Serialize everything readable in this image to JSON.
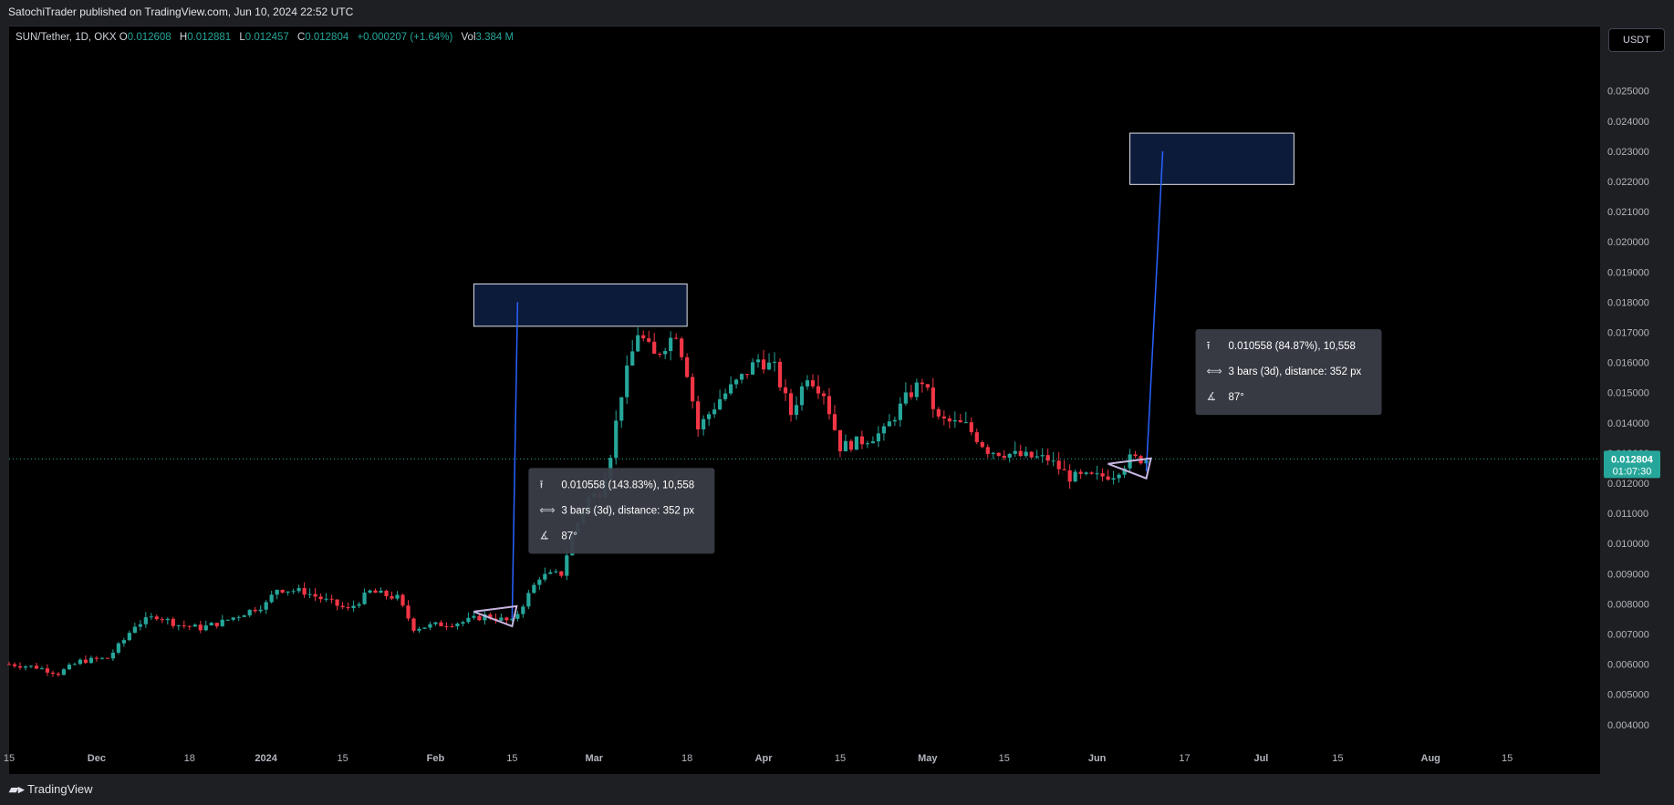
{
  "header": {
    "publisher": "SatochiTrader published on TradingView.com, Jun 10, 2024 22:52 UTC"
  },
  "legend": {
    "symbol": "SUN/Tether, 1D, OKX",
    "o_key": "O",
    "o": "0.012608",
    "h_key": "H",
    "h": "0.012881",
    "l_key": "L",
    "l": "0.012457",
    "c_key": "C",
    "c": "0.012804",
    "change": "+0.000207 (+1.64%)",
    "vol_key": "Vol",
    "vol": "3.384 M"
  },
  "currency_button": "USDT",
  "footer": {
    "brand": "TradingView"
  },
  "colors": {
    "up": "#26a69a",
    "down": "#f23645",
    "background": "#000000",
    "measure_line": "#2962ff",
    "box_fill": "#0d1b3a"
  },
  "chart_data": {
    "type": "candlestick",
    "ylim": [
      0.0036,
      0.0262
    ],
    "y_ticks": [
      "0.004000",
      "0.005000",
      "0.006000",
      "0.007000",
      "0.008000",
      "0.009000",
      "0.010000",
      "0.011000",
      "0.012000",
      "0.013000",
      "0.014000",
      "0.015000",
      "0.016000",
      "0.017000",
      "0.018000",
      "0.019000",
      "0.020000",
      "0.021000",
      "0.022000",
      "0.023000",
      "0.024000",
      "0.025000"
    ],
    "x_labels": [
      "15",
      "Dec",
      "18",
      "2024",
      "15",
      "Feb",
      "15",
      "Mar",
      "18",
      "Apr",
      "15",
      "May",
      "15",
      "Jun",
      "17",
      "Jul",
      "15",
      "Aug",
      "15"
    ],
    "x_label_dates": [
      "2023-11-15",
      "2023-12-01",
      "2023-12-18",
      "2024-01-01",
      "2024-01-15",
      "2024-02-01",
      "2024-02-15",
      "2024-03-01",
      "2024-03-18",
      "2024-04-01",
      "2024-04-15",
      "2024-05-01",
      "2024-05-15",
      "2024-06-01",
      "2024-06-17",
      "2024-07-01",
      "2024-07-15",
      "2024-08-01",
      "2024-08-15"
    ],
    "x_start": "2023-11-15",
    "x_end": "2024-09-01",
    "last_price": "0.012804",
    "countdown": "01:07:30",
    "close_path": [
      [
        "2023-11-15",
        0.006
      ],
      [
        "2023-11-20",
        0.0059
      ],
      [
        "2023-11-24",
        0.0057
      ],
      [
        "2023-11-28",
        0.0061
      ],
      [
        "2023-12-03",
        0.0062
      ],
      [
        "2023-12-06",
        0.0068
      ],
      [
        "2023-12-08",
        0.0073
      ],
      [
        "2023-12-12",
        0.0076
      ],
      [
        "2023-12-16",
        0.0073
      ],
      [
        "2023-12-20",
        0.0072
      ],
      [
        "2023-12-24",
        0.0074
      ],
      [
        "2023-12-28",
        0.0077
      ],
      [
        "2024-01-01",
        0.008
      ],
      [
        "2024-01-03",
        0.0085
      ],
      [
        "2024-01-08",
        0.0084
      ],
      [
        "2024-01-12",
        0.0081
      ],
      [
        "2024-01-16",
        0.0078
      ],
      [
        "2024-01-20",
        0.0084
      ],
      [
        "2024-01-25",
        0.0082
      ],
      [
        "2024-01-28",
        0.0072
      ],
      [
        "2024-02-01",
        0.0073
      ],
      [
        "2024-02-06",
        0.0074
      ],
      [
        "2024-02-10",
        0.0076
      ],
      [
        "2024-02-15",
        0.0074
      ],
      [
        "2024-02-17",
        0.008
      ],
      [
        "2024-02-20",
        0.0089
      ],
      [
        "2024-02-24",
        0.009
      ],
      [
        "2024-02-26",
        0.0103
      ],
      [
        "2024-02-29",
        0.0115
      ],
      [
        "2024-03-02",
        0.0117
      ],
      [
        "2024-03-04",
        0.013
      ],
      [
        "2024-03-06",
        0.015
      ],
      [
        "2024-03-09",
        0.017
      ],
      [
        "2024-03-12",
        0.0162
      ],
      [
        "2024-03-16",
        0.017
      ],
      [
        "2024-03-18",
        0.0157
      ],
      [
        "2024-03-20",
        0.0138
      ],
      [
        "2024-03-24",
        0.0148
      ],
      [
        "2024-03-28",
        0.0155
      ],
      [
        "2024-03-31",
        0.0161
      ],
      [
        "2024-04-03",
        0.0158
      ],
      [
        "2024-04-06",
        0.0143
      ],
      [
        "2024-04-09",
        0.0156
      ],
      [
        "2024-04-12",
        0.015
      ],
      [
        "2024-04-15",
        0.0132
      ],
      [
        "2024-04-19",
        0.0134
      ],
      [
        "2024-04-23",
        0.0137
      ],
      [
        "2024-04-27",
        0.0148
      ],
      [
        "2024-04-30",
        0.0154
      ],
      [
        "2024-05-03",
        0.0141
      ],
      [
        "2024-05-08",
        0.0139
      ],
      [
        "2024-05-12",
        0.0131
      ],
      [
        "2024-05-18",
        0.0129
      ],
      [
        "2024-05-23",
        0.0128
      ],
      [
        "2024-05-27",
        0.0122
      ],
      [
        "2024-06-01",
        0.0122
      ],
      [
        "2024-06-04",
        0.0123
      ],
      [
        "2024-06-07",
        0.0128
      ],
      [
        "2024-06-10",
        0.0128
      ]
    ],
    "projection_boxes": [
      {
        "from": "2024-02-08",
        "to": "2024-03-18",
        "top": 0.0186,
        "bottom": 0.0172
      },
      {
        "from": "2024-06-07",
        "to": "2024-07-07",
        "top": 0.0236,
        "bottom": 0.0219
      }
    ],
    "measure_lines": [
      {
        "from": [
          "2024-02-15",
          0.0075
        ],
        "to": [
          "2024-02-16",
          0.018
        ]
      },
      {
        "from": [
          "2024-06-10",
          0.0124
        ],
        "to": [
          "2024-06-13",
          0.023
        ]
      }
    ],
    "angle_markers": [
      {
        "at": [
          "2024-02-15",
          0.0075
        ]
      },
      {
        "at": [
          "2024-06-10",
          0.0124
        ]
      }
    ],
    "tooltips": [
      {
        "price_line": "0.010558 (143.83%), 10,558",
        "bars_line": "3 bars (3d), distance: 352 px",
        "angle_line": "87°",
        "at": [
          "2024-02-18",
          0.0125
        ]
      },
      {
        "price_line": "0.010558 (84.87%), 10,558",
        "bars_line": "3 bars (3d), distance: 352 px",
        "angle_line": "87°",
        "at": [
          "2024-06-19",
          0.0171
        ]
      }
    ]
  }
}
